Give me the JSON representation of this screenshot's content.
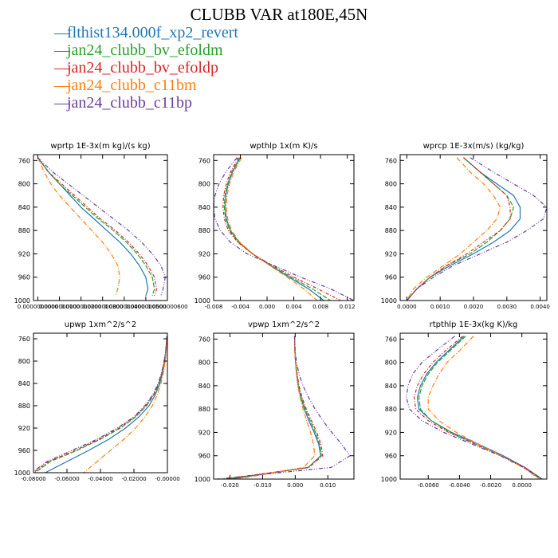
{
  "title": "CLUBB VAR at180E,45N",
  "colors": {
    "series": [
      "#1f77b4",
      "#2ca02c",
      "#d62728",
      "#ff7f0e",
      "#6a3d9a"
    ]
  },
  "legend": [
    "flthist134.000f_xp2_revert",
    "jan24_clubb_bv_efoldm",
    "jan24_clubb_bv_efoldp",
    "jan24_clubb_c11bm",
    "jan24_clubb_c11bp"
  ],
  "chart_data": [
    {
      "type": "line",
      "title": "wprtp  1E-3x(m kg)/(s kg)",
      "x_scale": 1e-08,
      "xlim": [
        -0.02,
        0.6
      ],
      "ylim": [
        1000,
        750
      ],
      "yticks": [
        760,
        800,
        840,
        880,
        920,
        960,
        1000
      ],
      "xticks": [
        0,
        0.1,
        0.2,
        0.3,
        0.4,
        0.5,
        0.6
      ],
      "xtick_labels": [
        "0.0000000000",
        "0.0000000100",
        "0.0000000200",
        "0.0000000300",
        "0.0000000400",
        "0.0000000500",
        "0.0000000600"
      ],
      "y": [
        755,
        780,
        800,
        820,
        840,
        860,
        880,
        900,
        920,
        940,
        960,
        980,
        992
      ],
      "series": [
        {
          "name": "flthist134.000f_xp2_revert",
          "x": [
            0.0,
            0.05,
            0.1,
            0.15,
            0.2,
            0.26,
            0.32,
            0.38,
            0.43,
            0.47,
            0.5,
            0.51,
            0.5
          ]
        },
        {
          "name": "jan24_clubb_bv_efoldm",
          "x": [
            0.0,
            0.05,
            0.1,
            0.16,
            0.22,
            0.28,
            0.35,
            0.41,
            0.46,
            0.5,
            0.53,
            0.54,
            0.53
          ]
        },
        {
          "name": "jan24_clubb_bv_efoldp",
          "x": [
            0.0,
            0.05,
            0.11,
            0.17,
            0.23,
            0.29,
            0.36,
            0.42,
            0.47,
            0.51,
            0.54,
            0.55,
            0.54
          ]
        },
        {
          "name": "jan24_clubb_c11bm",
          "x": [
            0.0,
            0.03,
            0.06,
            0.1,
            0.15,
            0.2,
            0.25,
            0.3,
            0.34,
            0.37,
            0.38,
            0.37,
            0.36
          ]
        },
        {
          "name": "jan24_clubb_c11bp",
          "x": [
            0.0,
            0.07,
            0.14,
            0.21,
            0.28,
            0.35,
            0.42,
            0.48,
            0.53,
            0.57,
            0.59,
            0.58,
            0.57
          ]
        }
      ]
    },
    {
      "type": "line",
      "title": "wpthlp  1x(m K)/s",
      "xlim": [
        -0.008,
        0.013
      ],
      "ylim": [
        1000,
        750
      ],
      "yticks": [
        760,
        800,
        840,
        880,
        920,
        960,
        1000
      ],
      "xticks": [
        -0.008,
        -0.004,
        0.0,
        0.004,
        0.008,
        0.012
      ],
      "xtick_labels": [
        "-0.008",
        "-0.004",
        "0.000",
        "0.004",
        "0.008",
        "0.012"
      ],
      "y": [
        755,
        780,
        800,
        820,
        840,
        860,
        880,
        900,
        920,
        940,
        960,
        980,
        1000
      ],
      "series": [
        {
          "name": "flthist134.000f_xp2_revert",
          "x": [
            -0.004,
            -0.0052,
            -0.0058,
            -0.0062,
            -0.0063,
            -0.0061,
            -0.0055,
            -0.0042,
            -0.0022,
            0.0005,
            0.0033,
            0.0062,
            0.0085
          ]
        },
        {
          "name": "jan24_clubb_bv_efoldm",
          "x": [
            -0.0041,
            -0.0053,
            -0.0059,
            -0.0063,
            -0.0064,
            -0.0062,
            -0.0056,
            -0.0043,
            -0.0022,
            0.0006,
            0.0036,
            0.0068,
            0.0095
          ]
        },
        {
          "name": "jan24_clubb_bv_efoldp",
          "x": [
            -0.0043,
            -0.0055,
            -0.0061,
            -0.0065,
            -0.0066,
            -0.0064,
            -0.0058,
            -0.0044,
            -0.0022,
            0.0008,
            0.004,
            0.0076,
            0.011
          ]
        },
        {
          "name": "jan24_clubb_c11bm",
          "x": [
            -0.0038,
            -0.005,
            -0.0056,
            -0.006,
            -0.0061,
            -0.0059,
            -0.0053,
            -0.0041,
            -0.0021,
            0.0004,
            0.003,
            0.0055,
            0.0075
          ]
        },
        {
          "name": "jan24_clubb_c11bp",
          "x": [
            -0.0045,
            -0.0062,
            -0.0072,
            -0.0078,
            -0.008,
            -0.0078,
            -0.007,
            -0.0055,
            -0.003,
            0.001,
            0.005,
            0.0095,
            0.013
          ]
        }
      ]
    },
    {
      "type": "line",
      "title": "wprcp  1E-3x(m/s) (kg/kg)",
      "xlim": [
        -0.0002,
        0.0042
      ],
      "ylim": [
        1000,
        750
      ],
      "yticks": [
        760,
        800,
        840,
        880,
        920,
        960,
        1000
      ],
      "xticks": [
        0.0,
        0.001,
        0.002,
        0.003,
        0.004
      ],
      "xtick_labels": [
        "0.0000",
        "0.0010",
        "0.0020",
        "0.0030",
        "0.0040"
      ],
      "y": [
        755,
        780,
        800,
        820,
        840,
        860,
        880,
        900,
        920,
        940,
        960,
        980,
        1000
      ],
      "series": [
        {
          "name": "flthist134.000f_xp2_revert",
          "x": [
            0.0017,
            0.0022,
            0.0027,
            0.0032,
            0.0034,
            0.0034,
            0.0031,
            0.0026,
            0.002,
            0.0013,
            0.0007,
            0.0003,
            0.0
          ]
        },
        {
          "name": "jan24_clubb_bv_efoldm",
          "x": [
            0.0017,
            0.0022,
            0.0026,
            0.003,
            0.0032,
            0.0031,
            0.0028,
            0.0024,
            0.0019,
            0.0012,
            0.0007,
            0.0003,
            0.0
          ]
        },
        {
          "name": "jan24_clubb_bv_efoldp",
          "x": [
            0.0017,
            0.0022,
            0.0026,
            0.003,
            0.0031,
            0.0031,
            0.0028,
            0.0023,
            0.0018,
            0.0012,
            0.0007,
            0.0003,
            0.0
          ]
        },
        {
          "name": "jan24_clubb_c11bm",
          "x": [
            0.0015,
            0.0019,
            0.0023,
            0.0026,
            0.0028,
            0.0027,
            0.0024,
            0.002,
            0.0016,
            0.0011,
            0.0006,
            0.0002,
            0.0
          ]
        },
        {
          "name": "jan24_clubb_c11bp",
          "x": [
            0.0019,
            0.0026,
            0.0032,
            0.0038,
            0.0042,
            0.0041,
            0.0036,
            0.003,
            0.0022,
            0.0014,
            0.0008,
            0.0003,
            0.0
          ]
        }
      ]
    },
    {
      "type": "line",
      "title": "upwp  1xm^2/s^2",
      "xlim": [
        -0.08,
        0.0
      ],
      "ylim": [
        1000,
        750
      ],
      "yticks": [
        760,
        800,
        840,
        880,
        920,
        960,
        1000
      ],
      "xticks": [
        -0.08,
        -0.06,
        -0.04,
        -0.02,
        0.0
      ],
      "xtick_labels": [
        "-0.08000",
        "-0.06000",
        "-0.04000",
        "-0.02000",
        "-0.00000"
      ],
      "y": [
        755,
        780,
        800,
        820,
        840,
        860,
        880,
        900,
        920,
        940,
        960,
        980,
        1000
      ],
      "series": [
        {
          "name": "flthist134.000f_xp2_revert",
          "x": [
            -0.0003,
            -0.0008,
            -0.0015,
            -0.0028,
            -0.0045,
            -0.0072,
            -0.011,
            -0.017,
            -0.025,
            -0.035,
            -0.047,
            -0.06,
            -0.073
          ]
        },
        {
          "name": "jan24_clubb_bv_efoldm",
          "x": [
            -0.0003,
            -0.0009,
            -0.0017,
            -0.003,
            -0.005,
            -0.008,
            -0.0125,
            -0.019,
            -0.028,
            -0.04,
            -0.054,
            -0.07,
            -0.079
          ]
        },
        {
          "name": "jan24_clubb_bv_efoldp",
          "x": [
            -0.0003,
            -0.0009,
            -0.0018,
            -0.0032,
            -0.0052,
            -0.0083,
            -0.013,
            -0.0195,
            -0.029,
            -0.041,
            -0.055,
            -0.071,
            -0.08
          ]
        },
        {
          "name": "jan24_clubb_c11bm",
          "x": [
            -0.0003,
            -0.0007,
            -0.0013,
            -0.0024,
            -0.0038,
            -0.006,
            -0.009,
            -0.0135,
            -0.019,
            -0.026,
            -0.034,
            -0.042,
            -0.05
          ]
        },
        {
          "name": "jan24_clubb_c11bp",
          "x": [
            -0.0003,
            -0.001,
            -0.0019,
            -0.0034,
            -0.0055,
            -0.0087,
            -0.0135,
            -0.02,
            -0.03,
            -0.042,
            -0.057,
            -0.072,
            -0.081
          ]
        }
      ]
    },
    {
      "type": "line",
      "title": "vpwp  1xm^2/s^2",
      "xlim": [
        -0.025,
        0.018
      ],
      "ylim": [
        1000,
        750
      ],
      "yticks": [
        760,
        800,
        840,
        880,
        920,
        960,
        1000
      ],
      "xticks": [
        -0.02,
        -0.01,
        0.0,
        0.01
      ],
      "xtick_labels": [
        "-0.020",
        "-0.010",
        "0.000",
        "0.010"
      ],
      "y": [
        755,
        780,
        800,
        820,
        840,
        860,
        880,
        900,
        920,
        940,
        960,
        980,
        1000
      ],
      "series": [
        {
          "name": "flthist134.000f_xp2_revert",
          "x": [
            -0.0002,
            -0.0001,
            0.0001,
            0.0004,
            0.0009,
            0.0017,
            0.0028,
            0.0042,
            0.0058,
            0.0072,
            0.0078,
            0.004,
            -0.02
          ]
        },
        {
          "name": "jan24_clubb_bv_efoldm",
          "x": [
            -0.0002,
            -0.0001,
            0.0001,
            0.0005,
            0.001,
            0.0019,
            0.0031,
            0.0046,
            0.0062,
            0.0075,
            0.008,
            0.004,
            -0.021
          ]
        },
        {
          "name": "jan24_clubb_bv_efoldp",
          "x": [
            -0.0002,
            -0.0001,
            0.0002,
            0.0006,
            0.0012,
            0.0021,
            0.0034,
            0.005,
            0.0066,
            0.0079,
            0.0084,
            0.0042,
            -0.022
          ]
        },
        {
          "name": "jan24_clubb_c11bm",
          "x": [
            -0.0002,
            -0.0001,
            0.0001,
            0.0004,
            0.0008,
            0.0015,
            0.0024,
            0.0035,
            0.0047,
            0.0056,
            0.006,
            0.0025,
            -0.018
          ]
        },
        {
          "name": "jan24_clubb_c11bp",
          "x": [
            -0.0002,
            0.0,
            0.0004,
            0.0012,
            0.0024,
            0.0041,
            0.0061,
            0.0085,
            0.0112,
            0.0142,
            0.0168,
            0.011,
            -0.024
          ]
        }
      ]
    },
    {
      "type": "line",
      "title": "rtpthlp  1E-3x(kg K)/kg",
      "xlim": [
        -0.0078,
        0.0016
      ],
      "ylim": [
        1000,
        750
      ],
      "yticks": [
        760,
        800,
        840,
        880,
        920,
        960,
        1000
      ],
      "xticks": [
        -0.006,
        -0.004,
        -0.002,
        0.0
      ],
      "xtick_labels": [
        "-0.0060",
        "-0.0040",
        "-0.0020",
        "0.0000"
      ],
      "y": [
        755,
        780,
        800,
        820,
        840,
        860,
        880,
        900,
        920,
        940,
        960,
        980,
        1000
      ],
      "series": [
        {
          "name": "flthist134.000f_xp2_revert",
          "x": [
            -0.0037,
            -0.0047,
            -0.0055,
            -0.0061,
            -0.0065,
            -0.0067,
            -0.0066,
            -0.0058,
            -0.0045,
            -0.0028,
            -0.0012,
            0.0002,
            0.0013
          ]
        },
        {
          "name": "jan24_clubb_bv_efoldm",
          "x": [
            -0.0036,
            -0.0046,
            -0.0054,
            -0.006,
            -0.0064,
            -0.0066,
            -0.0065,
            -0.0058,
            -0.0046,
            -0.003,
            -0.0013,
            0.0001,
            0.0012
          ]
        },
        {
          "name": "jan24_clubb_bv_efoldp",
          "x": [
            -0.0038,
            -0.0049,
            -0.0057,
            -0.0063,
            -0.0067,
            -0.0069,
            -0.0068,
            -0.006,
            -0.0047,
            -0.003,
            -0.0013,
            0.0002,
            0.0013
          ]
        },
        {
          "name": "jan24_clubb_c11bm",
          "x": [
            -0.0031,
            -0.004,
            -0.0048,
            -0.0053,
            -0.0057,
            -0.006,
            -0.006,
            -0.0053,
            -0.0042,
            -0.0028,
            -0.0013,
            0.0001,
            0.0011
          ]
        },
        {
          "name": "jan24_clubb_c11bp",
          "x": [
            -0.0043,
            -0.0055,
            -0.0064,
            -0.007,
            -0.0073,
            -0.0074,
            -0.0072,
            -0.0064,
            -0.005,
            -0.0032,
            -0.0014,
            0.0001,
            0.0013
          ]
        }
      ]
    }
  ]
}
